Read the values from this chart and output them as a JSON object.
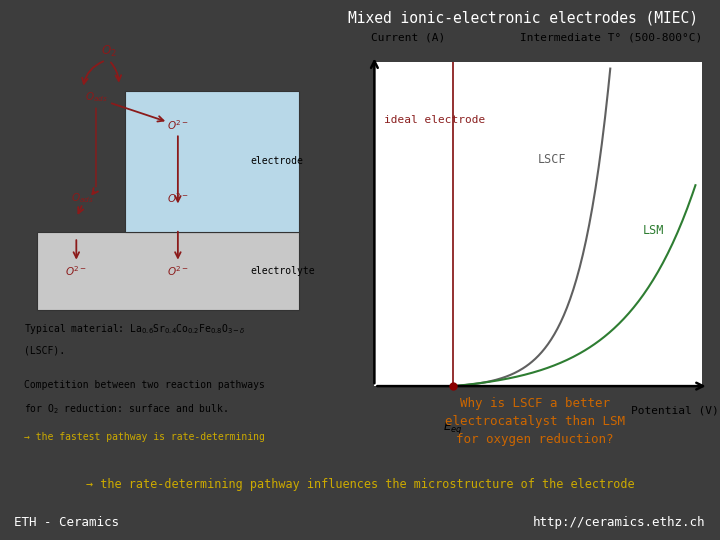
{
  "title": "Mixed ionic-electronic electrodes (MIEC)",
  "bg_color": "#3d3d3d",
  "title_bg": "#606060",
  "title_color": "#ffffff",
  "bottom_bar_color": "#1a1a1a",
  "bottom_text_left": "ETH - Ceramics",
  "bottom_text_right": "http://ceramics.ethz.ch",
  "yellow_text": "→ the rate-determining pathway influences the microstructure of the electrode",
  "yellow_color": "#ccaa00",
  "white_panel_bg": "#efefef",
  "electrode_color": "#b8d8e8",
  "electrolyte_color": "#c8c8c8",
  "arrow_color": "#8b1a1a",
  "right_panel": {
    "bg": "#ffffff",
    "current_label": "Current (A)",
    "potential_label": "Potential (V)",
    "intermediate_label": "Intermediate T° (500-800°C)",
    "ideal_label": "ideal electrode",
    "lscf_label": "LSCF",
    "lsm_label": "LSM",
    "why_text": "Why is LSCF a better\nelectrocatalyst than LSM\nfor oxygen reduction?",
    "ideal_color": "#8b2020",
    "lscf_color": "#606060",
    "lsm_color": "#2e7d32",
    "why_color": "#cc6600",
    "dot_color": "#8b0000"
  }
}
